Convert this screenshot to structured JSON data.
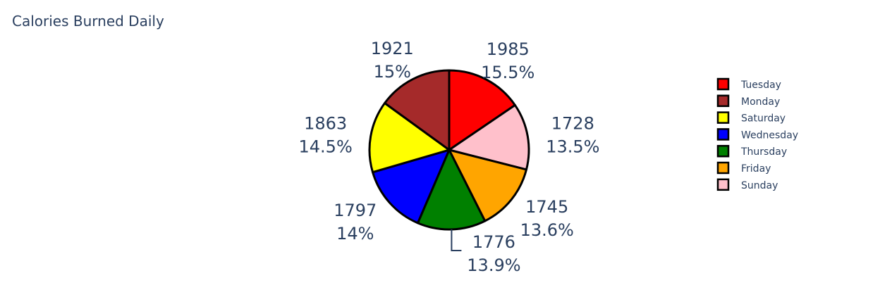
{
  "chart_data": {
    "type": "pie",
    "title": "Calories Burned Daily",
    "slices": [
      {
        "label": "Tuesday",
        "value": 1985,
        "percent": "15.5%",
        "color": "#ff0000"
      },
      {
        "label": "Sunday",
        "value": 1728,
        "percent": "13.5%",
        "color": "#ffc0cb"
      },
      {
        "label": "Friday",
        "value": 1745,
        "percent": "13.6%",
        "color": "#ffa500"
      },
      {
        "label": "Thursday",
        "value": 1776,
        "percent": "13.9%",
        "color": "#008000"
      },
      {
        "label": "Wednesday",
        "value": 1797,
        "percent": "14%",
        "color": "#0000ff"
      },
      {
        "label": "Saturday",
        "value": 1863,
        "percent": "14.5%",
        "color": "#ffff00"
      },
      {
        "label": "Monday",
        "value": 1921,
        "percent": "15%",
        "color": "#a52a2a"
      }
    ],
    "legend": [
      "Tuesday",
      "Monday",
      "Saturday",
      "Wednesday",
      "Thursday",
      "Friday",
      "Sunday"
    ],
    "legend_position": "right",
    "slice_border_color": "#000000",
    "text_color": "#2a3f5f"
  }
}
